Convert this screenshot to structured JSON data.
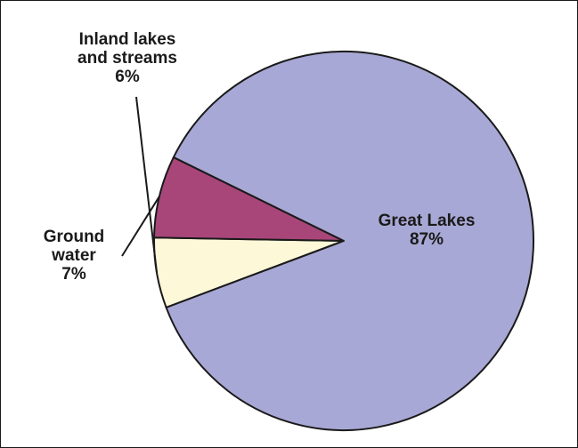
{
  "chart_data": {
    "type": "pie",
    "title": "",
    "slices": [
      {
        "name_lines": [
          "Great Lakes"
        ],
        "value": 87,
        "value_label": "87%",
        "color": "#a8a8d6"
      },
      {
        "name_lines": [
          "Ground",
          "water"
        ],
        "value": 7,
        "value_label": "7%",
        "color": "#a8467a"
      },
      {
        "name_lines": [
          "Inland lakes",
          "and streams"
        ],
        "value": 6,
        "value_label": "6%",
        "color": "#fdf8d8"
      }
    ],
    "start_angle_deg": 12,
    "outline_color": "#1a1a1a",
    "legend": "none"
  }
}
